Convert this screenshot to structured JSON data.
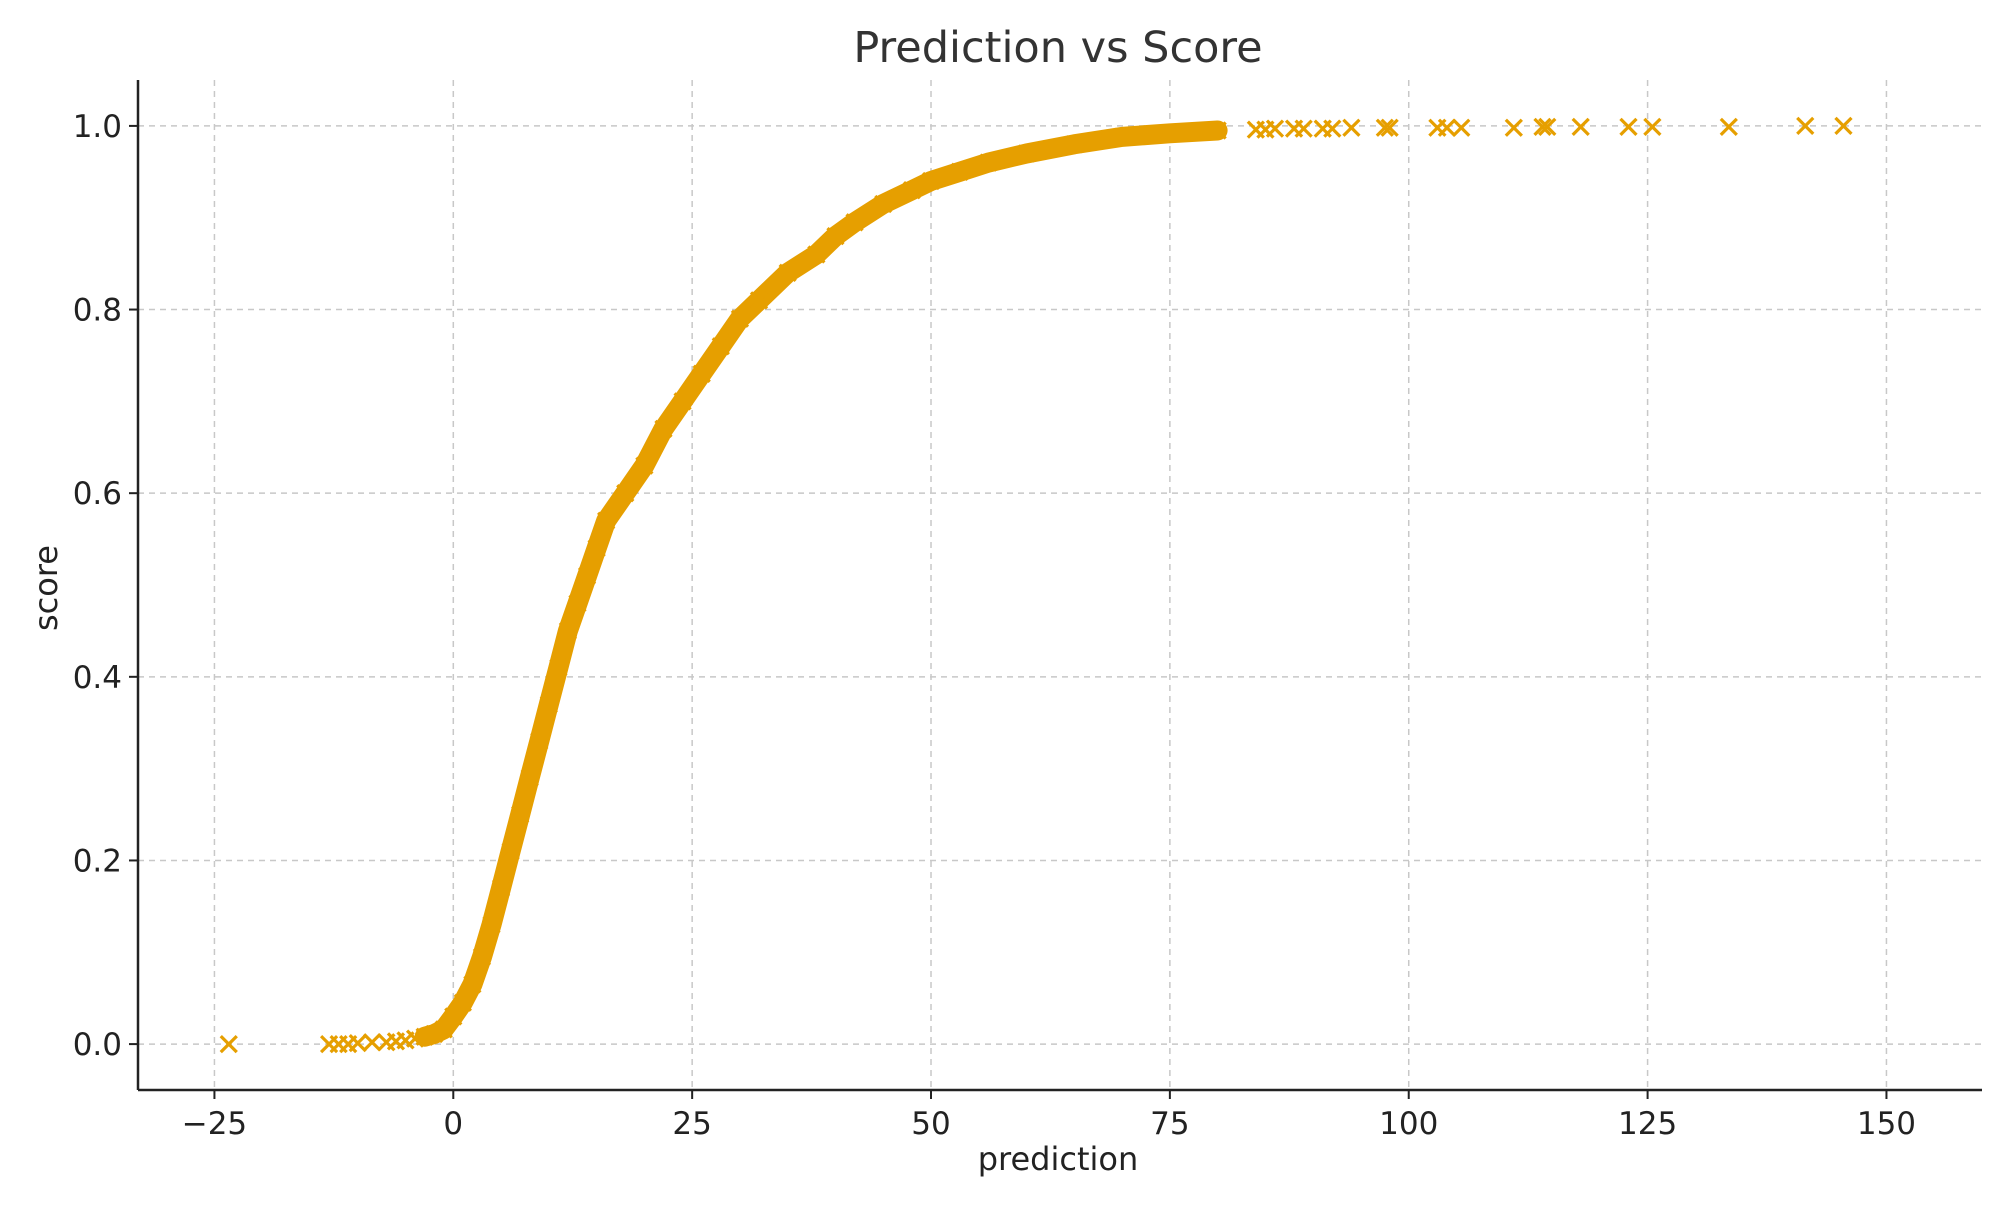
{
  "chart_data": {
    "type": "scatter",
    "title": "Prediction vs Score",
    "xlabel": "prediction",
    "ylabel": "score",
    "xlim": [
      -33,
      160
    ],
    "ylim": [
      -0.05,
      1.05
    ],
    "xticks": [
      -25,
      0,
      25,
      50,
      75,
      100,
      125,
      150
    ],
    "xtick_labels": [
      "−25",
      "0",
      "25",
      "50",
      "75",
      "100",
      "125",
      "150"
    ],
    "yticks": [
      0.0,
      0.2,
      0.4,
      0.6,
      0.8,
      1.0
    ],
    "ytick_labels": [
      "0.0",
      "0.2",
      "0.4",
      "0.6",
      "0.8",
      "1.0"
    ],
    "grid": true,
    "marker": "x",
    "colors": {
      "series": "#E69F00",
      "grid": "#c8c8c8",
      "axis": "#222222"
    },
    "series": [
      {
        "points": [
          [
            -23.5,
            0.0
          ],
          [
            -13,
            0.0
          ],
          [
            -12,
            0.0
          ],
          [
            -11,
            0.0
          ],
          [
            -10,
            0.001
          ],
          [
            -8.5,
            0.002
          ],
          [
            -7,
            0.002
          ],
          [
            -6,
            0.003
          ],
          [
            -5,
            0.004
          ],
          [
            -4,
            0.006
          ],
          [
            -3,
            0.008
          ],
          [
            -2,
            0.011
          ],
          [
            -1,
            0.016
          ],
          [
            0,
            0.03
          ],
          [
            1,
            0.045
          ],
          [
            2,
            0.065
          ],
          [
            3,
            0.095
          ],
          [
            4,
            0.13
          ],
          [
            5,
            0.17
          ],
          [
            6,
            0.21
          ],
          [
            7,
            0.25
          ],
          [
            8,
            0.29
          ],
          [
            9,
            0.33
          ],
          [
            10,
            0.37
          ],
          [
            11,
            0.41
          ],
          [
            12,
            0.45
          ],
          [
            13,
            0.48
          ],
          [
            14,
            0.51
          ],
          [
            15,
            0.54
          ],
          [
            16,
            0.57
          ],
          [
            18,
            0.6
          ],
          [
            20,
            0.63
          ],
          [
            22,
            0.67
          ],
          [
            24,
            0.7
          ],
          [
            26,
            0.73
          ],
          [
            28,
            0.76
          ],
          [
            30,
            0.79
          ],
          [
            32,
            0.81
          ],
          [
            35,
            0.84
          ],
          [
            38,
            0.86
          ],
          [
            40,
            0.88
          ],
          [
            42,
            0.895
          ],
          [
            45,
            0.915
          ],
          [
            48,
            0.93
          ],
          [
            50,
            0.94
          ],
          [
            53,
            0.95
          ],
          [
            56,
            0.96
          ],
          [
            60,
            0.97
          ],
          [
            65,
            0.98
          ],
          [
            70,
            0.988
          ],
          [
            75,
            0.992
          ],
          [
            80,
            0.995
          ],
          [
            84,
            0.996
          ],
          [
            85,
            0.996
          ],
          [
            86,
            0.997
          ],
          [
            88,
            0.997
          ],
          [
            89,
            0.997
          ],
          [
            91,
            0.997
          ],
          [
            92,
            0.997
          ],
          [
            94,
            0.998
          ],
          [
            97.5,
            0.998
          ],
          [
            98,
            0.998
          ],
          [
            103,
            0.998
          ],
          [
            104,
            0.998
          ],
          [
            105.5,
            0.998
          ],
          [
            111,
            0.998
          ],
          [
            114,
            0.999
          ],
          [
            114.5,
            0.999
          ],
          [
            118,
            0.999
          ],
          [
            123,
            0.999
          ],
          [
            125.5,
            0.999
          ],
          [
            133.5,
            0.999
          ],
          [
            141.5,
            1.0
          ],
          [
            145.5,
            1.0
          ]
        ]
      }
    ]
  }
}
